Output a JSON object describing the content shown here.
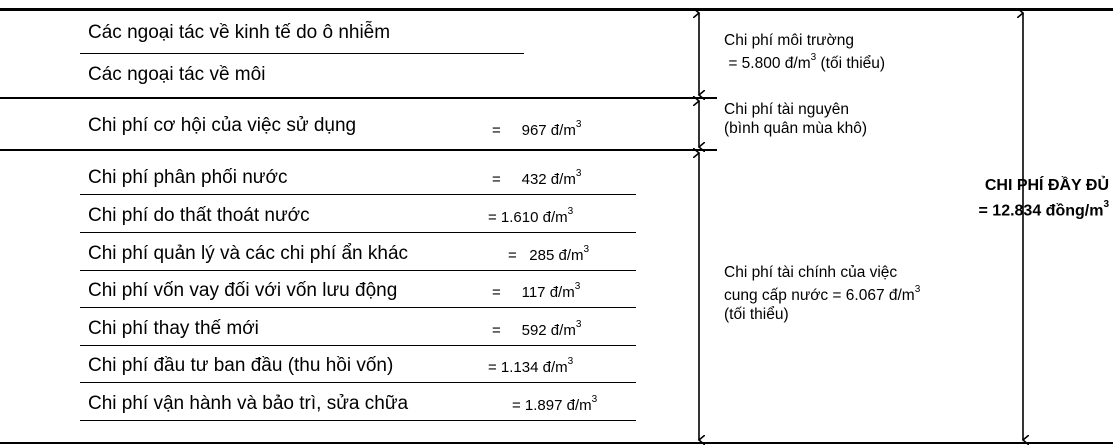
{
  "rows": [
    {
      "label": "Các ngoại tác về kinh tế do ô nhiễm",
      "eq": "",
      "value": "",
      "unit": ""
    },
    {
      "label": "Các ngoại tác về môi",
      "eq": "",
      "value": "",
      "unit": ""
    },
    {
      "label": "Chi phí cơ hội của việc sử dụng",
      "eq": "=",
      "value": "967 đ/m",
      "unit": "3"
    },
    {
      "label": "Chi phí phân phối nước",
      "eq": "=",
      "value": "432 đ/m",
      "unit": "3"
    },
    {
      "label": "Chi phí do thất thoát nước",
      "eq": "= 1.610",
      "value": "đ/m",
      "unit": "3"
    },
    {
      "label": "Chi phí quản lý và các chi phí ẩn khác",
      "eq": "=",
      "value": "285 đ/m",
      "unit": "3"
    },
    {
      "label": "Chi phí vốn vay đối với vốn lưu động",
      "eq": "=",
      "value": "117 đ/m",
      "unit": "3"
    },
    {
      "label": "Chi phí thay thế mới",
      "eq": "=",
      "value": "592 đ/m",
      "unit": "3"
    },
    {
      "label": "Chi phí đầu tư ban đầu (thu hồi vốn)",
      "eq": "= 1.134",
      "value": "đ/m",
      "unit": "3"
    },
    {
      "label": "Chi phí vận hành và bảo trì, sửa chữa",
      "eq": "= 1.897",
      "value": "đ/m",
      "unit": "3"
    }
  ],
  "notes": {
    "env_line1": "Chi phí môi trường",
    "env_line2a": "= 5.800 đ/m",
    "env_line2b": " (tối thiểu)",
    "res_line1": "Chi phí tài nguyên",
    "res_line2": "(bình quân mùa khô)",
    "fin_line1": "Chi phí tài chính của  việc",
    "fin_line2a": "cung cấp nước = 6.067 đ/m",
    "fin_line3": "(tối thiểu)",
    "sup": "3"
  },
  "total": {
    "line1": "CHI PHÍ ĐẦY ĐỦ",
    "line2": "= 12.834 đồng/m",
    "sup": "3"
  }
}
